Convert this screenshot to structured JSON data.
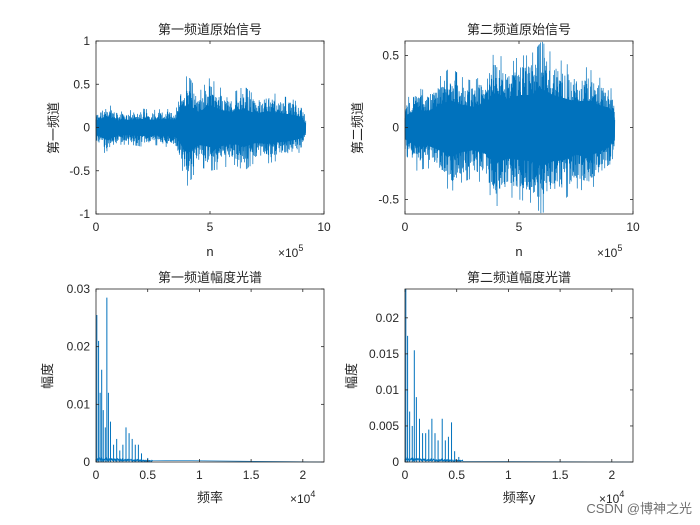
{
  "chart_data": [
    {
      "type": "line",
      "title": "第一频道原始信号",
      "xlabel": "n",
      "ylabel": "第一频道",
      "x_multiplier": "×10",
      "x_multiplier_exp": "5",
      "xlim": [
        0,
        1000000
      ],
      "ylim": [
        -1,
        1
      ],
      "xticks": [
        0,
        500000,
        1000000
      ],
      "xtick_labels": [
        "0",
        "5",
        "10"
      ],
      "yticks": [
        -1,
        -0.5,
        0,
        0.5,
        1
      ],
      "ytick_labels": [
        "-1",
        "-0.5",
        "0",
        "0.5",
        "1"
      ],
      "grid": false,
      "color": "#0072BD",
      "x_end": 920000,
      "envelope": {
        "x": [
          0,
          50000,
          100000,
          150000,
          200000,
          250000,
          300000,
          350000,
          400000,
          450000,
          500000,
          550000,
          600000,
          650000,
          700000,
          750000,
          800000,
          850000,
          900000,
          920000
        ],
        "upper": [
          0.18,
          0.28,
          0.18,
          0.2,
          0.22,
          0.2,
          0.22,
          0.2,
          0.62,
          0.4,
          0.58,
          0.45,
          0.4,
          0.48,
          0.36,
          0.42,
          0.38,
          0.34,
          0.28,
          0.1
        ],
        "lower": [
          -0.18,
          -0.33,
          -0.2,
          -0.2,
          -0.22,
          -0.2,
          -0.22,
          -0.25,
          -0.68,
          -0.45,
          -0.5,
          -0.48,
          -0.42,
          -0.5,
          -0.4,
          -0.42,
          -0.38,
          -0.35,
          -0.28,
          -0.1
        ]
      }
    },
    {
      "type": "line",
      "title": "第二频道原始信号",
      "xlabel": "n",
      "ylabel": "第二频道",
      "x_multiplier": "×10",
      "x_multiplier_exp": "5",
      "xlim": [
        0,
        1000000
      ],
      "ylim": [
        -0.6,
        0.6
      ],
      "xticks": [
        0,
        500000,
        1000000
      ],
      "xtick_labels": [
        "0",
        "5",
        "10"
      ],
      "yticks": [
        -0.5,
        0,
        0.5
      ],
      "ytick_labels": [
        "-0.5",
        "0",
        "0.5"
      ],
      "grid": false,
      "color": "#0072BD",
      "x_end": 920000,
      "envelope": {
        "x": [
          0,
          50000,
          100000,
          150000,
          200000,
          250000,
          300000,
          350000,
          400000,
          450000,
          500000,
          550000,
          600000,
          650000,
          700000,
          750000,
          800000,
          850000,
          900000,
          920000
        ],
        "upper": [
          0.18,
          0.28,
          0.25,
          0.35,
          0.42,
          0.35,
          0.32,
          0.38,
          0.55,
          0.42,
          0.5,
          0.5,
          0.6,
          0.5,
          0.45,
          0.4,
          0.42,
          0.35,
          0.3,
          0.15
        ],
        "lower": [
          -0.18,
          -0.3,
          -0.28,
          -0.35,
          -0.45,
          -0.38,
          -0.35,
          -0.4,
          -0.55,
          -0.48,
          -0.5,
          -0.52,
          -0.6,
          -0.52,
          -0.5,
          -0.42,
          -0.45,
          -0.38,
          -0.3,
          -0.15
        ]
      }
    },
    {
      "type": "line",
      "title": "第一频道幅度光谱",
      "xlabel": "频率",
      "ylabel": "幅度",
      "x_multiplier": "×10",
      "x_multiplier_exp": "4",
      "xlim": [
        0,
        22050
      ],
      "ylim": [
        0,
        0.03
      ],
      "xticks": [
        0,
        5000,
        10000,
        15000,
        20000
      ],
      "xtick_labels": [
        "0",
        "0.5",
        "1",
        "1.5",
        "2"
      ],
      "yticks": [
        0,
        0.01,
        0.02,
        0.03
      ],
      "ytick_labels": [
        "0",
        "0.01",
        "0.02",
        "0.03"
      ],
      "grid": false,
      "color": "#0072BD",
      "peaks": [
        [
          80,
          0.0255
        ],
        [
          250,
          0.021
        ],
        [
          400,
          0.012
        ],
        [
          550,
          0.016
        ],
        [
          700,
          0.009
        ],
        [
          900,
          0.006
        ],
        [
          1050,
          0.0285
        ],
        [
          1200,
          0.012
        ],
        [
          1400,
          0.007
        ],
        [
          1700,
          0.003
        ],
        [
          2000,
          0.004
        ],
        [
          2300,
          0.002
        ],
        [
          2600,
          0.003
        ],
        [
          2900,
          0.006
        ],
        [
          3200,
          0.005
        ],
        [
          3500,
          0.004
        ],
        [
          3800,
          0.003
        ],
        [
          4100,
          0.003
        ],
        [
          4400,
          0.0015
        ],
        [
          5000,
          0.0007
        ]
      ],
      "noise_floor": 0.0006,
      "noise_end": 5500
    },
    {
      "type": "line",
      "title": "第二频道幅度光谱",
      "xlabel": "频率y",
      "ylabel": "幅度",
      "x_multiplier": "×10",
      "x_multiplier_exp": "4",
      "xlim": [
        0,
        22050
      ],
      "ylim": [
        0,
        0.024
      ],
      "xticks": [
        0,
        5000,
        10000,
        15000,
        20000
      ],
      "xtick_labels": [
        "0",
        "0.5",
        "1",
        "1.5",
        "2"
      ],
      "yticks": [
        0,
        0.005,
        0.01,
        0.015,
        0.02
      ],
      "ytick_labels": [
        "0",
        "0.005",
        "0.01",
        "0.015",
        "0.02"
      ],
      "grid": false,
      "color": "#0072BD",
      "peaks": [
        [
          80,
          0.024
        ],
        [
          250,
          0.0175
        ],
        [
          450,
          0.007
        ],
        [
          700,
          0.005
        ],
        [
          900,
          0.0155
        ],
        [
          1100,
          0.009
        ],
        [
          1400,
          0.006
        ],
        [
          1700,
          0.004
        ],
        [
          2000,
          0.004
        ],
        [
          2300,
          0.0045
        ],
        [
          2600,
          0.006
        ],
        [
          2900,
          0.004
        ],
        [
          3200,
          0.003
        ],
        [
          3600,
          0.006
        ],
        [
          3900,
          0.003
        ],
        [
          4200,
          0.0035
        ],
        [
          4500,
          0.0055
        ],
        [
          4800,
          0.0015
        ],
        [
          5200,
          0.0007
        ]
      ],
      "noise_floor": 0.0005,
      "noise_end": 5600
    }
  ],
  "watermark": "CSDN @博神之光"
}
